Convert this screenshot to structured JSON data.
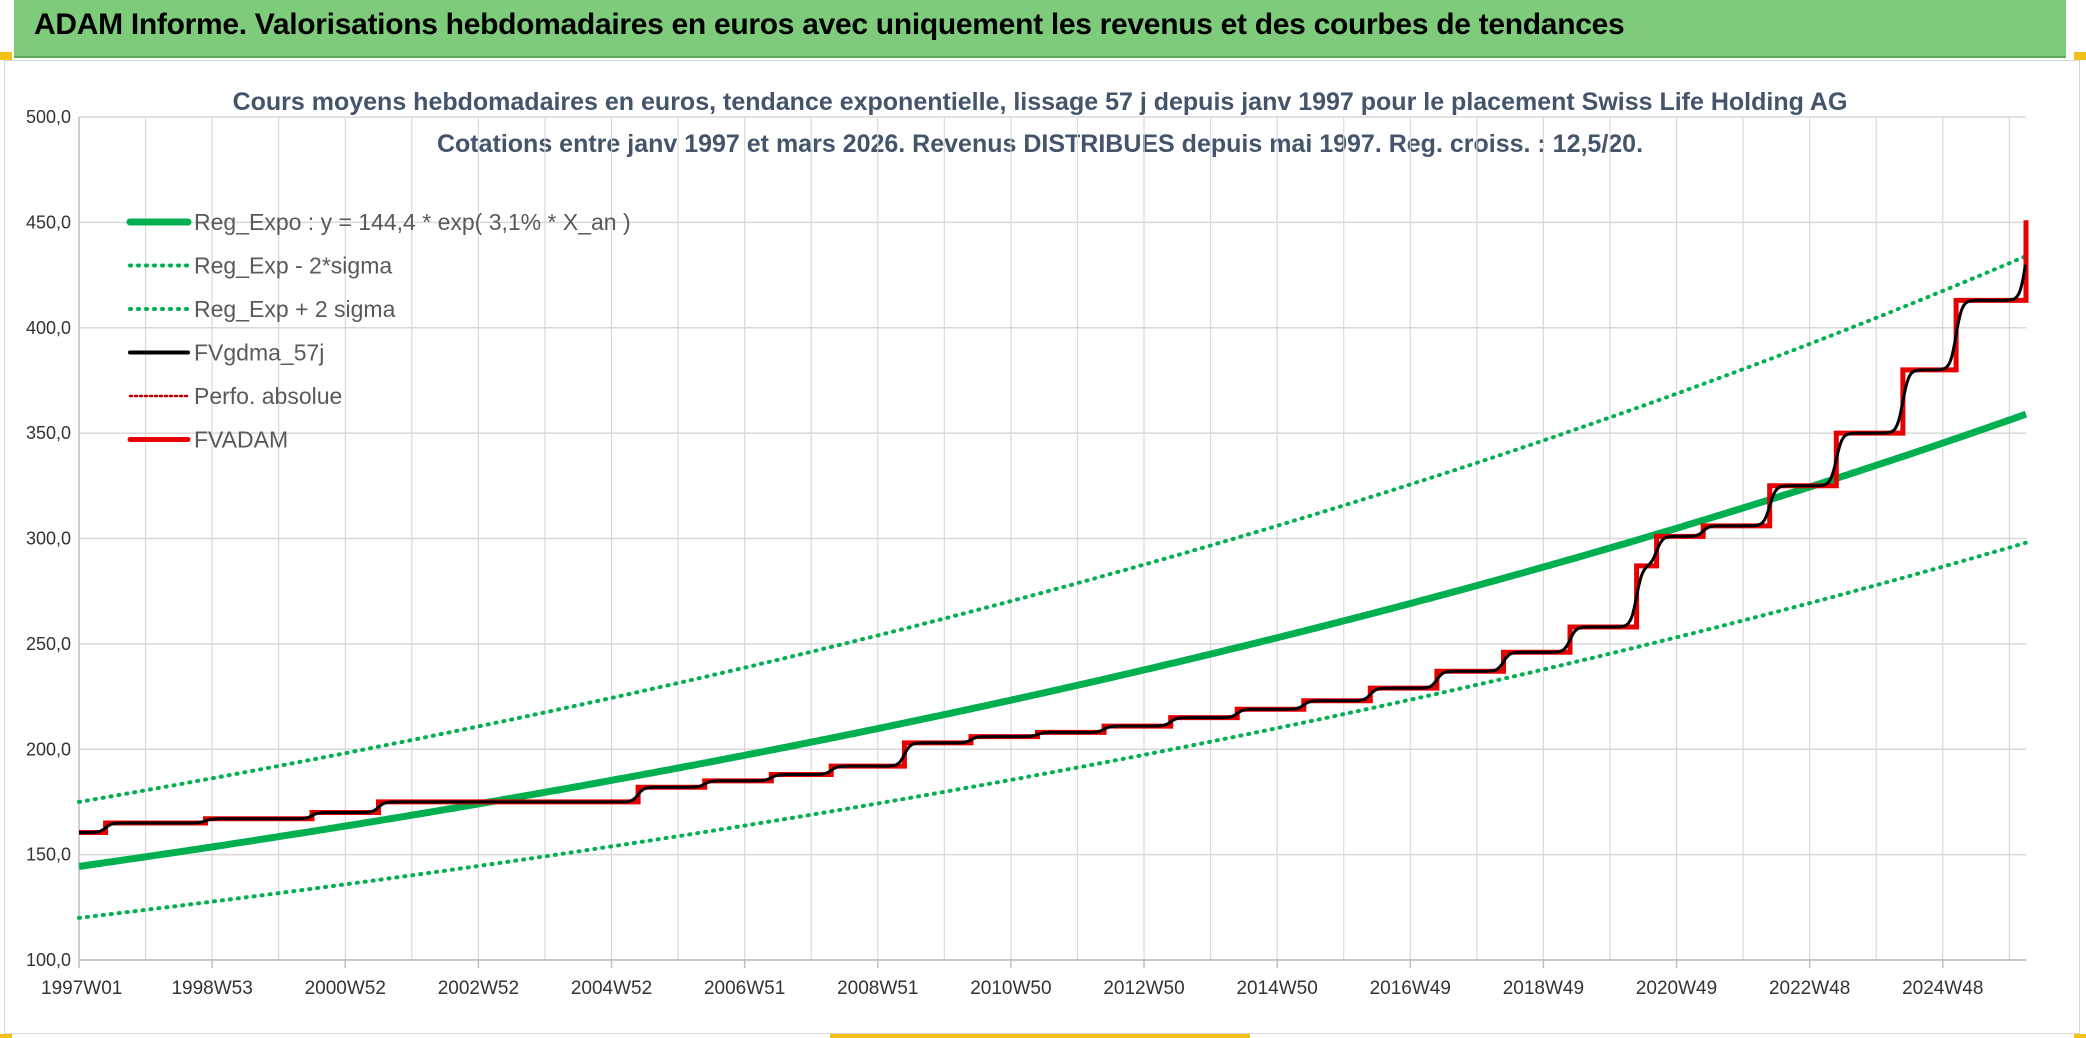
{
  "banner": {
    "title": "ADAM Informe. Valorisations hebdomadaires en euros avec uniquement les revenus et des courbes de tendances"
  },
  "colors": {
    "banner": "#7dcb7b",
    "corner": "#f2c21a",
    "reg_expo": "#00b050",
    "fvgdma": "#000000",
    "fvadam": "#e60000",
    "perfo": "#c00000",
    "grid": "#d9d9d9",
    "title": "#44546a"
  },
  "chart_data": {
    "type": "line",
    "title_line1": "Cours moyens hebdomadaires en euros, tendance exponentielle, lissage 57 j depuis janv 1997 pour le placement Swiss Life Holding AG",
    "title_line2": "Cotations entre janv 1997 et mars 2026. Revenus DISTRIBUES depuis mai 1997. Reg. croiss. : 12,5/20.",
    "x_start": 1997.0,
    "x_end": 2026.25,
    "ylim": [
      100,
      500
    ],
    "y_ticks": [
      "100,0",
      "150,0",
      "200,0",
      "250,0",
      "300,0",
      "350,0",
      "400,0",
      "450,0",
      "500,0"
    ],
    "y_tick_values": [
      100,
      150,
      200,
      250,
      300,
      350,
      400,
      450,
      500
    ],
    "x_tick_labels": [
      "1997W01",
      "1998W53",
      "2000W52",
      "2002W52",
      "2004W52",
      "2006W51",
      "2008W51",
      "2010W50",
      "2012W50",
      "2014W50",
      "2016W49",
      "2018W49",
      "2020W49",
      "2022W48",
      "2024W48"
    ],
    "x_tick_positions": [
      1997.0,
      1999.0,
      2001.0,
      2003.0,
      2005.0,
      2007.0,
      2009.0,
      2011.0,
      2013.0,
      2015.0,
      2017.0,
      2019.0,
      2021.0,
      2023.0,
      2025.0
    ],
    "legend": [
      {
        "key": "reg_expo",
        "label": "Reg_Expo : y = 144,4 * exp( 3,1% *  X_an )"
      },
      {
        "key": "reg_minus",
        "label": "Reg_Exp - 2*sigma"
      },
      {
        "key": "reg_plus",
        "label": "Reg_Exp + 2 sigma"
      },
      {
        "key": "fvgdma",
        "label": "FVgdma_57j"
      },
      {
        "key": "perfo",
        "label": "Perfo. absolue"
      },
      {
        "key": "fvadam",
        "label": "FVADAM"
      }
    ],
    "series": [
      {
        "name": "Reg_Expo",
        "x": [
          1997.0,
          2001.0,
          2005.0,
          2009.0,
          2013.0,
          2017.0,
          2021.0,
          2026.25
        ],
        "values": [
          144.4,
          163.6,
          185.3,
          209.9,
          237.8,
          269.4,
          305.2,
          359.0
        ]
      },
      {
        "name": "Reg_Exp - 2*sigma",
        "x": [
          1997.0,
          2001.0,
          2005.0,
          2009.0,
          2013.0,
          2017.0,
          2021.0,
          2026.25
        ],
        "values": [
          120.0,
          135.5,
          153.0,
          172.8,
          195.2,
          220.4,
          250.0,
          298.0
        ]
      },
      {
        "name": "Reg_Exp + 2 sigma",
        "x": [
          1997.0,
          2001.0,
          2005.0,
          2009.0,
          2013.0,
          2017.0,
          2021.0,
          2026.25
        ],
        "values": [
          175.0,
          198.0,
          225.0,
          255.0,
          290.0,
          328.0,
          368.0,
          434.0
        ]
      },
      {
        "name": "FVADAM",
        "x": [
          1997.0,
          1997.4,
          1998.9,
          2000.5,
          2001.5,
          2005.4,
          2006.4,
          2007.4,
          2008.3,
          2009.4,
          2010.4,
          2011.4,
          2012.4,
          2013.4,
          2014.4,
          2015.4,
          2016.4,
          2017.4,
          2018.4,
          2019.4,
          2020.4,
          2020.7,
          2021.4,
          2022.4,
          2023.4,
          2024.4,
          2025.2,
          2026.25
        ],
        "values": [
          160.5,
          165.0,
          167.0,
          170.0,
          175.0,
          182.0,
          185.0,
          188.0,
          192.0,
          203.0,
          206.0,
          208.0,
          211.0,
          215.0,
          219.0,
          223.0,
          229.0,
          237.0,
          246.0,
          258.0,
          287.0,
          301.0,
          306.0,
          325.0,
          350.0,
          380.0,
          413.0,
          451.0
        ]
      }
    ]
  }
}
